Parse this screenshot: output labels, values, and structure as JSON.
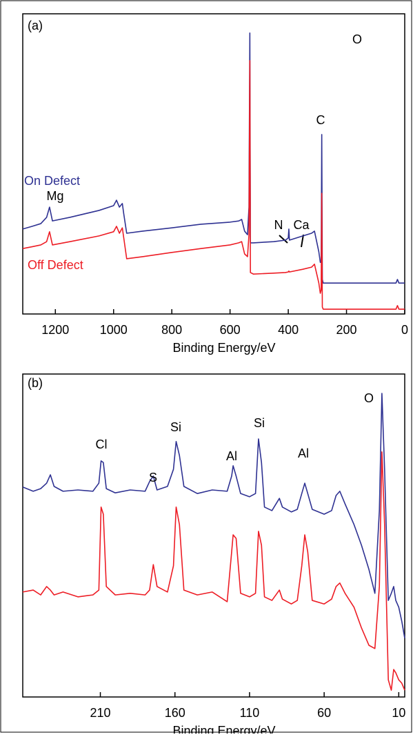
{
  "chart_data": [
    {
      "type": "line",
      "panel_label": "(a)",
      "xlabel": "Binding Energy/eV",
      "xlim": [
        1312,
        0
      ],
      "xticks": [
        1200,
        1000,
        800,
        600,
        400,
        200,
        0
      ],
      "ylim": [
        0,
        100
      ],
      "annotations": [
        "O",
        "C",
        "Mg",
        "N",
        "Ca"
      ],
      "x": [
        1312,
        1280,
        1250,
        1230,
        1220,
        1210,
        1150,
        1050,
        1000,
        990,
        980,
        970,
        965,
        955,
        900,
        800,
        700,
        600,
        570,
        560,
        550,
        540,
        535,
        532,
        530,
        520,
        450,
        410,
        400,
        398,
        396,
        350,
        320,
        310,
        305,
        295,
        290,
        287,
        285,
        283,
        280,
        200,
        100,
        30,
        25,
        20,
        0
      ],
      "series": [
        {
          "name": "On Defect",
          "color": "#2e3192",
          "values": [
            28.3,
            29.2,
            30.1,
            32.2,
            35.6,
            31.0,
            32.2,
            34.5,
            36.1,
            37.9,
            35.6,
            36.8,
            33.3,
            26.9,
            27.6,
            28.7,
            29.9,
            30.6,
            31.0,
            31.5,
            27.6,
            26.4,
            35.6,
            93.6,
            23.7,
            23.7,
            24.1,
            24.6,
            25.3,
            28.3,
            24.6,
            26.0,
            26.9,
            27.6,
            25.3,
            20.7,
            17.2,
            17.2,
            59.8,
            11.5,
            10.3,
            10.3,
            10.3,
            10.3,
            11.5,
            10.3,
            10.3
          ]
        },
        {
          "name": "Off Defect",
          "color": "#ed1c24",
          "values": [
            21.8,
            22.4,
            23.0,
            24.1,
            27.4,
            23.0,
            24.1,
            26.0,
            27.4,
            29.2,
            26.9,
            28.7,
            25.3,
            18.4,
            19.1,
            20.5,
            21.8,
            23.0,
            23.7,
            24.1,
            20.0,
            19.1,
            26.4,
            84.4,
            13.8,
            13.3,
            13.6,
            13.8,
            14.0,
            14.3,
            14.0,
            14.9,
            15.6,
            16.6,
            14.5,
            10.3,
            6.9,
            8.0,
            40.2,
            2.3,
            1.6,
            1.6,
            1.6,
            1.6,
            2.8,
            1.6,
            1.6
          ]
        }
      ]
    },
    {
      "type": "line",
      "panel_label": "(b)",
      "xlabel": "Binding Energy/eV",
      "xlim": [
        262,
        6
      ],
      "xticks": [
        210,
        160,
        110,
        60,
        10
      ],
      "ylim": [
        0,
        100
      ],
      "annotations": [
        "O",
        "Cl",
        "S",
        "Si",
        "Al",
        "Si",
        "Al"
      ],
      "x": [
        262,
        255,
        250,
        246,
        243.5,
        241,
        235,
        225,
        215,
        211,
        209.5,
        208,
        206,
        200,
        190,
        180,
        177,
        174.5,
        172,
        165,
        161,
        159.2,
        157,
        154,
        145,
        135,
        125,
        122,
        121,
        119,
        116,
        110,
        106,
        104,
        102,
        100,
        95,
        90,
        88,
        82,
        78,
        75,
        73,
        71,
        68,
        60,
        55,
        52,
        49.5,
        46,
        40,
        35,
        30,
        26,
        23,
        21.3,
        19.5,
        17,
        15,
        13.4,
        12,
        10,
        8,
        6
      ],
      "series": [
        {
          "color": "#2e3192",
          "values": [
            65.0,
            63.7,
            64.5,
            66.2,
            68.8,
            65.2,
            63.7,
            64.1,
            63.7,
            66.2,
            73.1,
            72.6,
            64.5,
            63.2,
            64.1,
            63.7,
            66.7,
            68.4,
            64.1,
            65.2,
            70.5,
            79.1,
            74.8,
            65.2,
            63.0,
            64.1,
            63.7,
            68.4,
            71.6,
            68.4,
            63.0,
            62.0,
            63.0,
            79.9,
            72.6,
            58.8,
            57.7,
            61.5,
            58.8,
            57.3,
            58.1,
            63.0,
            66.2,
            63.0,
            58.1,
            56.6,
            57.7,
            62.4,
            63.7,
            59.8,
            53.4,
            47.0,
            39.5,
            32.1,
            57.7,
            94.0,
            70.5,
            29.9,
            32.1,
            34.2,
            29.9,
            27.8,
            23.5,
            18.2
          ]
        },
        {
          "color": "#ed1c24",
          "values": [
            32.5,
            33.1,
            31.6,
            34.2,
            33.1,
            31.6,
            32.5,
            31.0,
            31.6,
            33.1,
            58.8,
            56.6,
            34.2,
            31.6,
            32.1,
            31.6,
            33.1,
            41.0,
            34.2,
            32.5,
            40.6,
            58.8,
            53.4,
            33.1,
            31.6,
            32.5,
            29.5,
            44.9,
            50.2,
            49.1,
            32.1,
            31.0,
            32.1,
            51.3,
            47.0,
            31.0,
            29.9,
            33.1,
            30.3,
            28.8,
            29.9,
            40.6,
            50.2,
            44.9,
            29.9,
            28.8,
            30.3,
            34.2,
            35.3,
            32.1,
            27.8,
            21.4,
            16.0,
            15.0,
            34.2,
            75.9,
            53.4,
            5.3,
            2.1,
            8.5,
            7.5,
            5.3,
            4.3,
            2.1
          ]
        }
      ]
    }
  ]
}
